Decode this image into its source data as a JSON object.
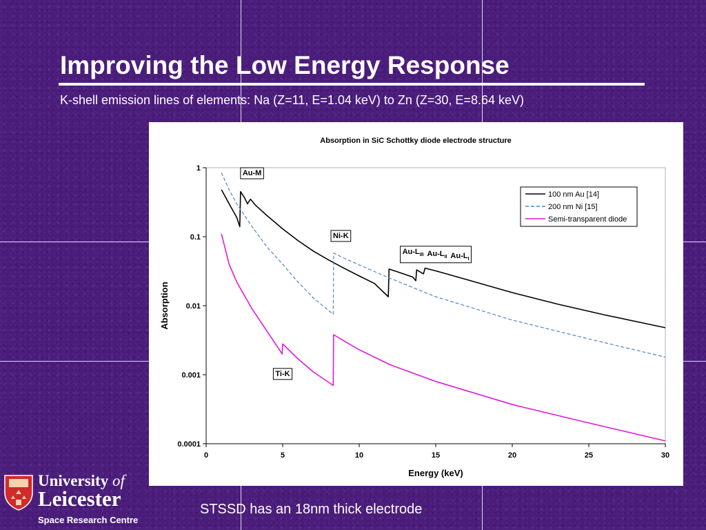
{
  "slide": {
    "title": "Improving the Low Energy Response",
    "subtitle": "K-shell emission lines of elements: Na (Z=11, E=1.04 keV) to Zn (Z=30, E=8.64 keV)",
    "caption": "STSSD has an 18nm thick electrode"
  },
  "branding": {
    "university_word": "University",
    "of_word": "of",
    "city_word": "Leicester",
    "department": "Space Research Centre"
  },
  "chart_data": {
    "type": "line",
    "title": "Absorption in SiC Schottky diode electrode structure",
    "xlabel": "Energy (keV)",
    "ylabel": "Absorption",
    "xlim": [
      0,
      30
    ],
    "ylim": [
      0.0001,
      1
    ],
    "yscale": "log",
    "xticks": [
      "0",
      "5",
      "10",
      "15",
      "20",
      "25",
      "30"
    ],
    "yticks": [
      "0.0001",
      "0.001",
      "0.01",
      "0.1",
      "1"
    ],
    "legend_position": "top-right",
    "series": [
      {
        "name": "100 nm Au [14]",
        "color": "#000000",
        "style": "solid",
        "points": [
          [
            1.0,
            0.48
          ],
          [
            1.5,
            0.3
          ],
          [
            2.0,
            0.19
          ],
          [
            2.2,
            0.14
          ],
          [
            2.25,
            0.45
          ],
          [
            2.5,
            0.37
          ],
          [
            2.7,
            0.3
          ],
          [
            2.9,
            0.35
          ],
          [
            3.2,
            0.29
          ],
          [
            4,
            0.2
          ],
          [
            5,
            0.13
          ],
          [
            6,
            0.088
          ],
          [
            7,
            0.062
          ],
          [
            8,
            0.046
          ],
          [
            9,
            0.035
          ],
          [
            10,
            0.027
          ],
          [
            11,
            0.021
          ],
          [
            11.9,
            0.0135
          ],
          [
            11.95,
            0.034
          ],
          [
            12.5,
            0.031
          ],
          [
            13.5,
            0.026
          ],
          [
            13.7,
            0.023
          ],
          [
            13.75,
            0.033
          ],
          [
            14.2,
            0.029
          ],
          [
            14.3,
            0.035
          ],
          [
            15,
            0.032
          ],
          [
            17,
            0.024
          ],
          [
            20,
            0.0155
          ],
          [
            23,
            0.0105
          ],
          [
            26,
            0.0074
          ],
          [
            30,
            0.0048
          ]
        ]
      },
      {
        "name": "200 nm Ni  [15]",
        "color": "#4a86c8",
        "style": "dashed",
        "points": [
          [
            1.0,
            0.85
          ],
          [
            1.5,
            0.48
          ],
          [
            2,
            0.3
          ],
          [
            3,
            0.14
          ],
          [
            4,
            0.07
          ],
          [
            5,
            0.04
          ],
          [
            6,
            0.022
          ],
          [
            7,
            0.013
          ],
          [
            8.3,
            0.0075
          ],
          [
            8.33,
            0.058
          ],
          [
            9,
            0.049
          ],
          [
            10,
            0.039
          ],
          [
            12,
            0.025
          ],
          [
            15,
            0.0135
          ],
          [
            20,
            0.0062
          ],
          [
            25,
            0.0033
          ],
          [
            30,
            0.0018
          ]
        ]
      },
      {
        "name": "Semi-transparent diode",
        "color": "#e01ad8",
        "style": "solid",
        "points": [
          [
            1.0,
            0.11
          ],
          [
            1.5,
            0.04
          ],
          [
            2,
            0.022
          ],
          [
            3,
            0.009
          ],
          [
            4,
            0.0042
          ],
          [
            4.97,
            0.002
          ],
          [
            5.0,
            0.0028
          ],
          [
            6,
            0.0017
          ],
          [
            7,
            0.0011
          ],
          [
            8.3,
            0.0007
          ],
          [
            8.33,
            0.0038
          ],
          [
            9,
            0.0031
          ],
          [
            10,
            0.0023
          ],
          [
            12,
            0.0014
          ],
          [
            15,
            0.0008
          ],
          [
            20,
            0.00037
          ],
          [
            25,
            0.0002
          ],
          [
            30,
            0.00011
          ]
        ]
      }
    ],
    "annotations": [
      {
        "text": "Au-M",
        "x": 3.0,
        "y": 0.85
      },
      {
        "text": "Ni-K",
        "x": 8.8,
        "y": 0.105
      },
      {
        "text": "Ti-K",
        "x": 5.0,
        "y": 0.00105
      },
      {
        "parts": [
          {
            "text": "Au-L",
            "sub": "III"
          },
          {
            "text": "Au-L",
            "sub": "II"
          },
          {
            "text": "Au-L",
            "sub": "I"
          }
        ],
        "x": 15.0,
        "y": 0.062
      }
    ]
  }
}
